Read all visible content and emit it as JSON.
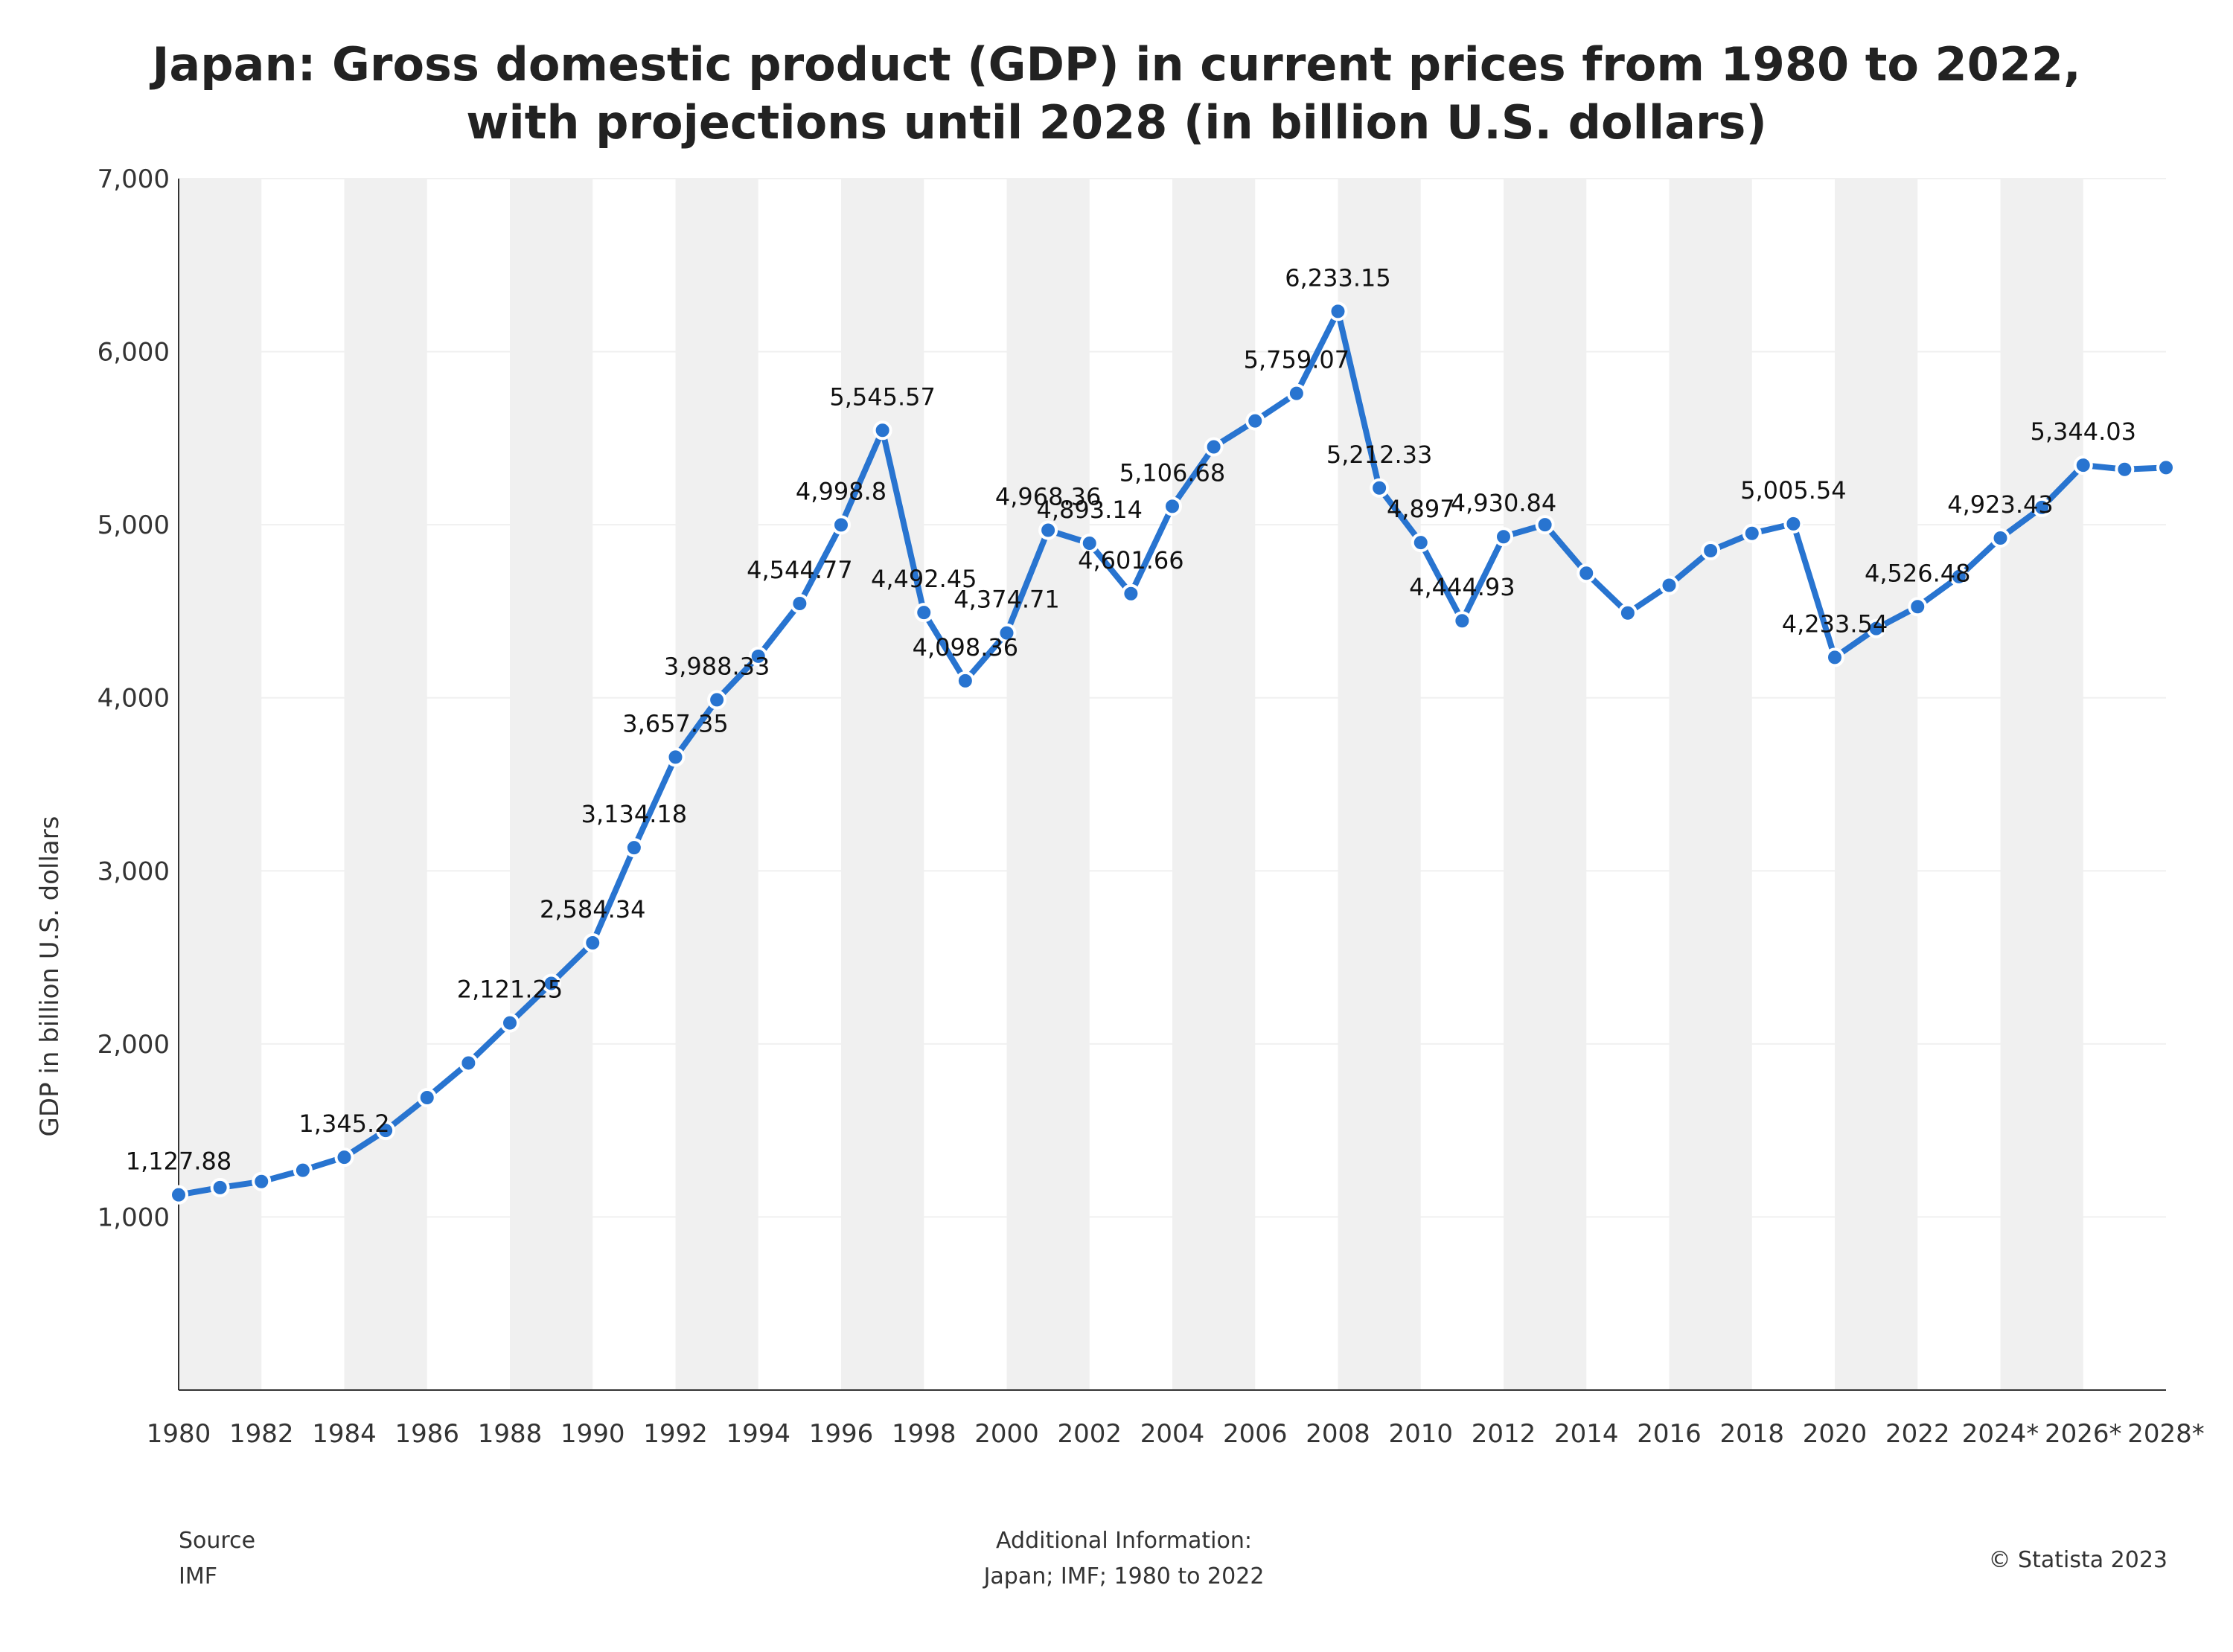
{
  "chart_data": {
    "type": "line",
    "title_lines": [
      "Japan: Gross domestic product (GDP) in current prices from 1980 to 2022,",
      "with projections until 2028 (in billion U.S. dollars)"
    ],
    "ylabel": "GDP in billion U.S. dollars",
    "ylim": [
      0,
      7000
    ],
    "yticks": [
      "1,000",
      "2,000",
      "3,000",
      "4,000",
      "5,000",
      "6,000",
      "7,000"
    ],
    "ytick_values": [
      1000,
      2000,
      3000,
      4000,
      5000,
      6000,
      7000
    ],
    "xtick_labels": [
      "1980",
      "1982",
      "1984",
      "1986",
      "1988",
      "1990",
      "1992",
      "1994",
      "1996",
      "1998",
      "2000",
      "2002",
      "2004",
      "2006",
      "2008",
      "2010",
      "2012",
      "2014",
      "2016",
      "2018",
      "2020",
      "2022",
      "2024*",
      "2026*",
      "2028*"
    ],
    "x": [
      "1980",
      "1981",
      "1982",
      "1983",
      "1984",
      "1985",
      "1986",
      "1987",
      "1988",
      "1989",
      "1990",
      "1991",
      "1992",
      "1993",
      "1994",
      "1995",
      "1996",
      "1997",
      "1998",
      "1999",
      "2000",
      "2001",
      "2002",
      "2003",
      "2004",
      "2005",
      "2006",
      "2007",
      "2008",
      "2009",
      "2010",
      "2011",
      "2012",
      "2013",
      "2014",
      "2015",
      "2016",
      "2017",
      "2018",
      "2019",
      "2020",
      "2021",
      "2022",
      "2023*",
      "2024*",
      "2025*",
      "2026*",
      "2027*",
      "2028*"
    ],
    "values": [
      1127.88,
      1170,
      1205,
      1270,
      1345.2,
      1500,
      1690,
      1890,
      2121.25,
      2350,
      2584.34,
      3134.18,
      3657.35,
      3988.33,
      4240,
      4544.77,
      4998.8,
      5545.57,
      4492.45,
      4098.36,
      4374.71,
      4968.36,
      4893.14,
      4601.66,
      5106.68,
      5450,
      5600,
      5759.07,
      6233.15,
      5212.33,
      4897,
      4444.93,
      4930.84,
      5000,
      4720,
      4490,
      4650,
      4850,
      4950,
      5005.54,
      4233.54,
      4400,
      4526.48,
      4700,
      4923.43,
      5100,
      5344.03,
      5320,
      5330
    ],
    "data_labels": [
      {
        "index": 0,
        "text": "1,127.88"
      },
      {
        "index": 4,
        "text": "1,345.2"
      },
      {
        "index": 8,
        "text": "2,121.25"
      },
      {
        "index": 10,
        "text": "2,584.34"
      },
      {
        "index": 11,
        "text": "3,134.18"
      },
      {
        "index": 12,
        "text": "3,657.35"
      },
      {
        "index": 13,
        "text": "3,988.33"
      },
      {
        "index": 15,
        "text": "4,544.77"
      },
      {
        "index": 16,
        "text": "4,998.8"
      },
      {
        "index": 17,
        "text": "5,545.57"
      },
      {
        "index": 18,
        "text": "4,492.45"
      },
      {
        "index": 19,
        "text": "4,098.36"
      },
      {
        "index": 20,
        "text": "4,374.71"
      },
      {
        "index": 21,
        "text": "4,968.36"
      },
      {
        "index": 22,
        "text": "4,893.14"
      },
      {
        "index": 23,
        "text": "4,601.66"
      },
      {
        "index": 24,
        "text": "5,106.68"
      },
      {
        "index": 27,
        "text": "5,759.07"
      },
      {
        "index": 28,
        "text": "6,233.15"
      },
      {
        "index": 29,
        "text": "5,212.33"
      },
      {
        "index": 30,
        "text": "4,897"
      },
      {
        "index": 31,
        "text": "4,444.93"
      },
      {
        "index": 32,
        "text": "4,930.84"
      },
      {
        "index": 39,
        "text": "5,005.54"
      },
      {
        "index": 40,
        "text": "4,233.54"
      },
      {
        "index": 42,
        "text": "4,526.48"
      },
      {
        "index": 44,
        "text": "4,923.43"
      },
      {
        "index": 46,
        "text": "5,344.03"
      }
    ],
    "grid": true,
    "legend": false,
    "colors": {
      "line": "#2874d0",
      "marker_stroke": "#ffffff",
      "band": "#f0f0f0",
      "grid": "#f0f0f0",
      "axis": "#333333"
    }
  },
  "footer": {
    "source_heading": "Source",
    "source_text": "IMF",
    "info_heading": "Additional Information:",
    "info_text": "Japan; IMF; 1980 to 2022",
    "copyright": "© Statista 2023"
  }
}
